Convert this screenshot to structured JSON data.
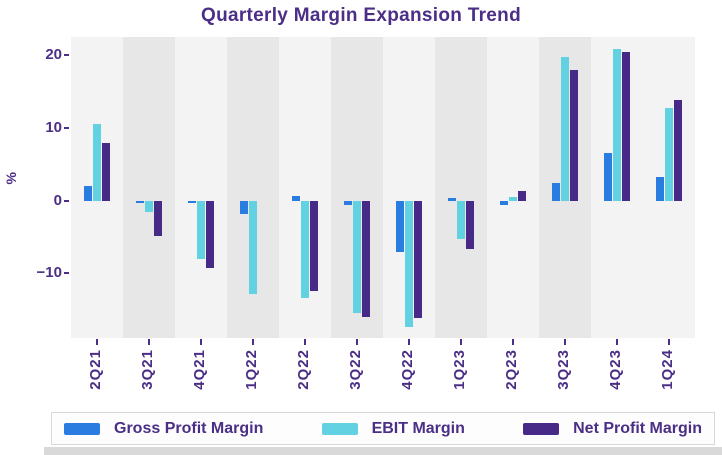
{
  "chart_data": {
    "type": "bar",
    "title": "Quarterly Margin Expansion Trend",
    "ylabel": "%",
    "xlabel": "",
    "categories": [
      "2Q21",
      "3Q21",
      "4Q21",
      "1Q22",
      "2Q22",
      "3Q22",
      "4Q22",
      "1Q23",
      "2Q23",
      "3Q23",
      "4Q23",
      "1Q24"
    ],
    "series": [
      {
        "name": "Gross Profit Margin",
        "color": "#2b7ce0",
        "values": [
          2.0,
          -0.3,
          -0.3,
          -1.8,
          0.6,
          -0.6,
          -7.0,
          0.4,
          -0.6,
          2.5,
          6.6,
          3.2
        ]
      },
      {
        "name": "EBIT Margin",
        "color": "#62d2e2",
        "values": [
          10.6,
          -1.5,
          -8.0,
          -12.8,
          -13.4,
          -15.5,
          -17.4,
          -5.3,
          0.5,
          19.8,
          20.9,
          12.8
        ]
      },
      {
        "name": "Net Profit Margin",
        "color": "#472987",
        "values": [
          8.0,
          -4.8,
          -9.2,
          0.0,
          -12.4,
          -16.0,
          -16.1,
          -6.7,
          1.4,
          18.0,
          20.4,
          13.9
        ]
      }
    ],
    "yticks": [
      20,
      10,
      0,
      -10
    ],
    "ylim": [
      -18.8,
      22.5
    ],
    "grid": "off",
    "background_bands": {
      "light": "#f3f3f3",
      "dark": "#e7e7e7",
      "dark_band_indices": [
        1,
        3,
        5,
        7,
        9
      ]
    },
    "legend_position": "bottom",
    "text_color": "#4b2e86"
  },
  "legend": {
    "items": [
      {
        "label": "Gross Profit Margin",
        "color": "#2b7ce0"
      },
      {
        "label": "EBIT Margin",
        "color": "#62d2e2"
      },
      {
        "label": "Net Profit Margin",
        "color": "#472987"
      }
    ]
  }
}
